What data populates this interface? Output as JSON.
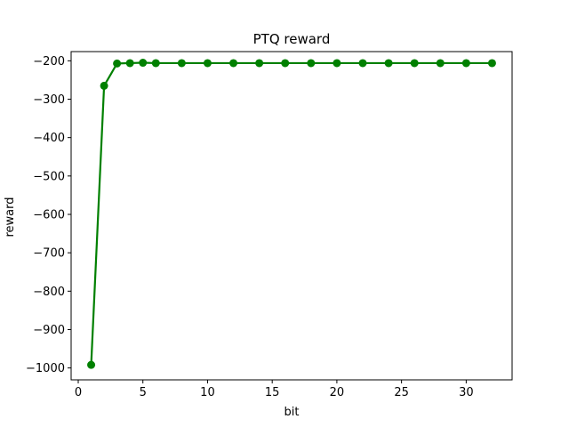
{
  "chart_data": {
    "type": "line",
    "title": "PTQ reward",
    "xlabel": "bit",
    "ylabel": "reward",
    "xlim": [
      -0.55,
      33.55
    ],
    "ylim": [
      -1031,
      -176
    ],
    "xticks": [
      0,
      5,
      10,
      15,
      20,
      25,
      30
    ],
    "yticks": [
      -1000,
      -900,
      -800,
      -700,
      -600,
      -500,
      -400,
      -300,
      -200
    ],
    "grid": false,
    "legend": "none",
    "color": "#008000",
    "series": [
      {
        "x": [
          1,
          2,
          3,
          4,
          5,
          6,
          8,
          10,
          12,
          14,
          16,
          18,
          20,
          22,
          24,
          26,
          28,
          30,
          32
        ],
        "values": [
          -992,
          -265,
          -207,
          -206,
          -205,
          -206,
          -206,
          -206,
          -206,
          -206,
          -206,
          -206,
          -206,
          -206,
          -206,
          -206,
          -206,
          -206,
          -206
        ]
      }
    ]
  }
}
